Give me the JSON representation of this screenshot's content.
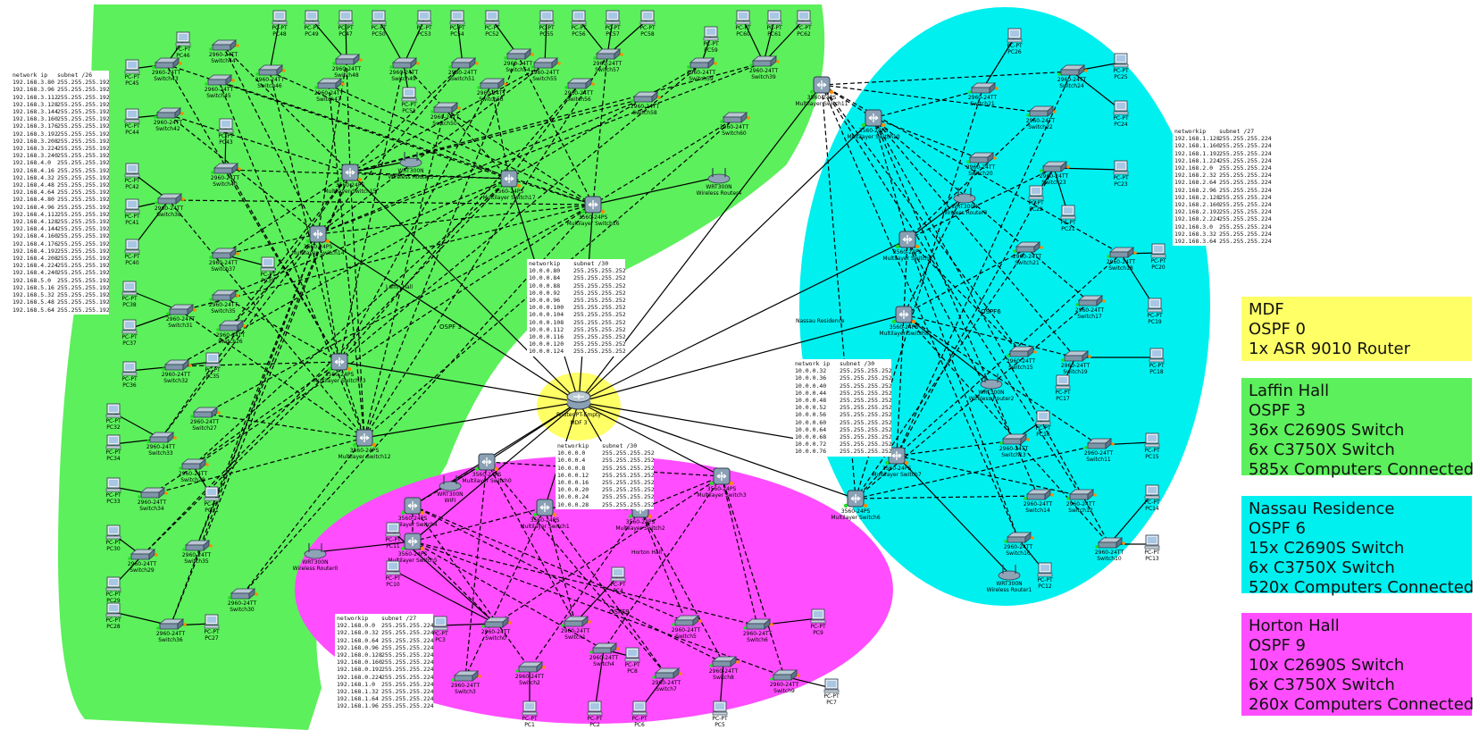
{
  "colors": {
    "laffin": "#5cf05c",
    "nassau": "#00f0f0",
    "horton": "#ff4dff",
    "mdf": "#ffff66",
    "link": "#000000",
    "port_up": "#22dd22",
    "port_wait": "#ff8800"
  },
  "zone_labels": {
    "laffin": "Laffin Hall",
    "nassau": "Nassau Residence",
    "horton": "Horton Hall",
    "ospf_laffin": "OSPF 3",
    "ospf_nassau": "OSPF6",
    "ospf_horton": "OSPF9"
  },
  "core": {
    "model": "Router-PT-Empty",
    "name": "MDF 3"
  },
  "legend": [
    {
      "title": "MDF",
      "lines": [
        "OSPF 0",
        "1x ASR 9010 Router"
      ],
      "color": "#ffff66"
    },
    {
      "title": "Laffin Hall",
      "lines": [
        "OSPF 3",
        "36x C2690S Switch",
        "6x C3750X Switch",
        "585x Computers Connected"
      ],
      "color": "#5cf05c"
    },
    {
      "title": "Nassau Residence",
      "lines": [
        "OSPF 6",
        "15x C2690S Switch",
        "6x C3750X Switch",
        "520x Computers Connected"
      ],
      "color": "#00f0f0"
    },
    {
      "title": "Horton Hall",
      "lines": [
        "OSPF 9",
        "10x C2690S Switch",
        "6x C3750X Switch",
        "260x Computers Connected"
      ],
      "color": "#ff4dff"
    }
  ],
  "tables": {
    "laffin": {
      "h1": "network ip",
      "h2": "subnet /26",
      "rows": [
        [
          "192.168.3.80",
          "255.255.255.192"
        ],
        [
          "192.168.3.96",
          "255.255.255.192"
        ],
        [
          "192.168.3.112",
          "255.255.255.192"
        ],
        [
          "192.168.3.128",
          "255.255.255.192"
        ],
        [
          "192.168.3.144",
          "255.255.255.192"
        ],
        [
          "192.168.3.160",
          "255.255.255.192"
        ],
        [
          "192.168.3.176",
          "255.255.255.192"
        ],
        [
          "192.168.3.192",
          "255.255.255.192"
        ],
        [
          "192.168.3.208",
          "255.255.255.192"
        ],
        [
          "192.168.3.224",
          "255.255.255.192"
        ],
        [
          "192.168.3.240",
          "255.255.255.192"
        ],
        [
          "192.168.4.0",
          "255.255.255.192"
        ],
        [
          "192.168.4.16",
          "255.255.255.192"
        ],
        [
          "192.168.4.32",
          "255.255.255.192"
        ],
        [
          "192.168.4.48",
          "255.255.255.192"
        ],
        [
          "192.168.4.64",
          "255.255.255.192"
        ],
        [
          "192.168.4.80",
          "255.255.255.192"
        ],
        [
          "192.168.4.96",
          "255.255.255.192"
        ],
        [
          "192.168.4.112",
          "255.255.255.192"
        ],
        [
          "192.168.4.128",
          "255.255.255.192"
        ],
        [
          "192.168.4.144",
          "255.255.255.192"
        ],
        [
          "192.168.4.160",
          "255.255.255.192"
        ],
        [
          "192.168.4.176",
          "255.255.255.192"
        ],
        [
          "192.168.4.192",
          "255.255.255.192"
        ],
        [
          "192.168.4.208",
          "255.255.255.192"
        ],
        [
          "192.168.4.224",
          "255.255.255.192"
        ],
        [
          "192.168.4.240",
          "255.255.255.192"
        ],
        [
          "192.168.5.0",
          "255.255.255.192"
        ],
        [
          "192.168.5.16",
          "255.255.255.192"
        ],
        [
          "192.168.5.32",
          "255.255.255.192"
        ],
        [
          "192.168.5.48",
          "255.255.255.192"
        ],
        [
          "192.168.5.64",
          "255.255.255.192"
        ]
      ]
    },
    "nassau": {
      "h1": "networkip",
      "h2": "subnet /27",
      "rows": [
        [
          "192.168.1.128",
          "255.255.255.224"
        ],
        [
          "192.168.1.160",
          "255.255.255.224"
        ],
        [
          "192.168.1.192",
          "255.255.255.224"
        ],
        [
          "192.168.1.224",
          "255.255.255.224"
        ],
        [
          "192.168.2.0",
          "255.255.255.224"
        ],
        [
          "192.168.2.32",
          "255.255.255.224"
        ],
        [
          "192.168.2.64",
          "255.255.255.224"
        ],
        [
          "192.168.2.96",
          "255.255.255.224"
        ],
        [
          "192.168.2.128",
          "255.255.255.224"
        ],
        [
          "192.168.2.160",
          "255.255.255.224"
        ],
        [
          "192.168.2.192",
          "255.255.255.224"
        ],
        [
          "192.168.2.224",
          "255.255.255.224"
        ],
        [
          "192.168.3.0",
          "255.255.255.224"
        ],
        [
          "192.168.3.32",
          "255.255.255.224"
        ],
        [
          "192.168.3.64",
          "255.255.255.224"
        ]
      ]
    },
    "horton": {
      "h1": "networkip",
      "h2": "subnet /27",
      "rows": [
        [
          "192.168.0.0",
          "255.255.255.224"
        ],
        [
          "192.168.0.32",
          "255.255.255.224"
        ],
        [
          "192.168.0.64",
          "255.255.255.224"
        ],
        [
          "192.168.0.96",
          "255.255.255.224"
        ],
        [
          "192.168.0.128",
          "255.255.255.224"
        ],
        [
          "192.168.0.160",
          "255.255.255.224"
        ],
        [
          "192.168.0.192",
          "255.255.255.224"
        ],
        [
          "192.168.0.224",
          "255.255.255.224"
        ],
        [
          "192.168.1.0",
          "255.255.255.224"
        ],
        [
          "192.168.1.32",
          "255.255.255.224"
        ],
        [
          "192.168.1.64",
          "255.255.255.224"
        ],
        [
          "192.168.1.96",
          "255.255.255.224"
        ]
      ]
    },
    "core_laffin": {
      "h1": "networkip",
      "h2": "subnet /30",
      "rows": [
        [
          "10.0.0.80",
          "255.255.255.252"
        ],
        [
          "10.0.0.84",
          "255.255.255.252"
        ],
        [
          "10.0.0.88",
          "255.255.255.252"
        ],
        [
          "10.0.0.92",
          "255.255.255.252"
        ],
        [
          "10.0.0.96",
          "255.255.255.252"
        ],
        [
          "10.0.0.100",
          "255.255.255.252"
        ],
        [
          "10.0.0.104",
          "255.255.255.252"
        ],
        [
          "10.0.0.108",
          "255.255.255.252"
        ],
        [
          "10.0.0.112",
          "255.255.255.252"
        ],
        [
          "10.0.0.116",
          "255.255.255.252"
        ],
        [
          "10.0.0.120",
          "255.255.255.252"
        ],
        [
          "10.0.0.124",
          "255.255.255.252"
        ]
      ]
    },
    "core_nassau": {
      "h1": "network ip",
      "h2": "subnet /30",
      "rows": [
        [
          "10.0.0.32",
          "255.255.255.252"
        ],
        [
          "10.0.0.36",
          "255.255.255.252"
        ],
        [
          "10.0.0.40",
          "255.255.255.252"
        ],
        [
          "10.0.0.44",
          "255.255.255.252"
        ],
        [
          "10.0.0.48",
          "255.255.255.252"
        ],
        [
          "10.0.0.52",
          "255.255.255.252"
        ],
        [
          "10.0.0.56",
          "255.255.255.252"
        ],
        [
          "10.0.0.60",
          "255.255.255.252"
        ],
        [
          "10.0.0.64",
          "255.255.255.252"
        ],
        [
          "10.0.0.68",
          "255.255.255.252"
        ],
        [
          "10.0.0.72",
          "255.255.255.252"
        ],
        [
          "10.0.0.76",
          "255.255.255.252"
        ]
      ]
    },
    "core_horton": {
      "h1": "networkip",
      "h2": "subnet /30",
      "rows": [
        [
          "10.0.0.0",
          "255.255.255.252"
        ],
        [
          "10.0.0.4",
          "255.255.255.252"
        ],
        [
          "10.0.0.8",
          "255.255.255.252"
        ],
        [
          "10.0.0.12",
          "255.255.255.252"
        ],
        [
          "10.0.0.16",
          "255.255.255.252"
        ],
        [
          "10.0.0.20",
          "255.255.255.252"
        ],
        [
          "10.0.0.24",
          "255.255.255.252"
        ],
        [
          "10.0.0.28",
          "255.255.255.252"
        ]
      ]
    }
  },
  "multilayer": [
    {
      "label": "Multilayer Switch15",
      "model": "3560-24PS"
    },
    {
      "label": "Multilayer Switch17",
      "model": "3560-24PS"
    },
    {
      "label": "Multilayer Switch16",
      "model": "3560-24PS"
    },
    {
      "label": "Multilayer Switch14",
      "model": "3560-24PS"
    },
    {
      "label": "Multilayer Switch13",
      "model": "3560-24PS"
    },
    {
      "label": "Multilayer Switch12",
      "model": "3560-24PS"
    },
    {
      "label": "Multilayer Switch11",
      "model": "3560-24PS"
    },
    {
      "label": "Multilayer Switch10",
      "model": "3560-24PS"
    },
    {
      "label": "Multilayer Switch9",
      "model": "3560-24PS"
    },
    {
      "label": "Multilayer Switch8",
      "model": "3560-24PS"
    },
    {
      "label": "Multilayer Switch7",
      "model": "3560-24PS"
    },
    {
      "label": "Multilayer Switch6",
      "model": "3560-24PS"
    },
    {
      "label": "Multilayer Switch0",
      "model": "3560-24PS"
    },
    {
      "label": "Multilayer Switch4",
      "model": "3560-24PS"
    },
    {
      "label": "Multilayer Switch5",
      "model": "3560-24PS"
    },
    {
      "label": "Multilayer Switch1",
      "model": "3560-24PS"
    },
    {
      "label": "Multilayer Switch2",
      "model": "3560-24PS"
    },
    {
      "label": "Multilayer Switch3",
      "model": "3560-24PS"
    }
  ],
  "switches": [
    {
      "label": "Switch44",
      "model": "2960-24TT"
    },
    {
      "label": "Switch43",
      "model": "2960-24TT"
    },
    {
      "label": "Switch45",
      "model": "2960-24TT"
    },
    {
      "label": "Switch42",
      "model": "2960-24TT"
    },
    {
      "label": "Switch46",
      "model": "2960-24TT"
    },
    {
      "label": "Switch47",
      "model": "2960-24TT"
    },
    {
      "label": "Switch48",
      "model": "2960-24TT"
    },
    {
      "label": "Switch49",
      "model": "2960-24TT"
    },
    {
      "label": "Switch50",
      "model": "2960-24TT"
    },
    {
      "label": "Switch51",
      "model": "2960-24TT"
    },
    {
      "label": "Switch53",
      "model": "2960-24TT"
    },
    {
      "label": "Switch54",
      "model": "2960-24TT"
    },
    {
      "label": "Switch55",
      "model": "2960-24TT"
    },
    {
      "label": "Switch56",
      "model": "2960-24TT"
    },
    {
      "label": "Switch57",
      "model": "2960-24TT"
    },
    {
      "label": "Switch58",
      "model": "2960-24TT"
    },
    {
      "label": "Switch59",
      "model": "2960-24TT"
    },
    {
      "label": "Switch60",
      "model": "2960-24TT"
    },
    {
      "label": "Switch39",
      "model": "2960-24TT"
    },
    {
      "label": "Switch40",
      "model": "2960-24TT"
    },
    {
      "label": "Switch38",
      "model": "2960-24TT"
    },
    {
      "label": "Switch37",
      "model": "2960-24TT"
    },
    {
      "label": "Switch35",
      "model": "2960-24TT"
    },
    {
      "label": "Switch31",
      "model": "2960-24TT"
    },
    {
      "label": "Switch26",
      "model": "2960-24TT"
    },
    {
      "label": "Switch32",
      "model": "2960-24TT"
    },
    {
      "label": "Switch27",
      "model": "2960-24TT"
    },
    {
      "label": "Switch33",
      "model": "2960-24TT"
    },
    {
      "label": "Switch28",
      "model": "2960-24TT"
    },
    {
      "label": "Switch34",
      "model": "2960-24TT"
    },
    {
      "label": "Switch35",
      "model": "2960-24TT"
    },
    {
      "label": "Switch29",
      "model": "2960-24TT"
    },
    {
      "label": "Switch30",
      "model": "2960-24TT"
    },
    {
      "label": "Switch36",
      "model": "2960-24TT"
    },
    {
      "label": "Switch24",
      "model": "2960-24TT"
    },
    {
      "label": "Switch21",
      "model": "2960-24TT"
    },
    {
      "label": "Switch22",
      "model": "2960-24TT"
    },
    {
      "label": "Switch20",
      "model": "2960-24TT"
    },
    {
      "label": "Switch23",
      "model": "2960-24TT"
    },
    {
      "label": "Switch21",
      "model": "2960-24TT"
    },
    {
      "label": "Switch18",
      "model": "2960-24TT"
    },
    {
      "label": "Switch17",
      "model": "2960-24TT"
    },
    {
      "label": "Switch15",
      "model": "2960-24TT"
    },
    {
      "label": "Switch19",
      "model": "2960-24TT"
    },
    {
      "label": "Switch13",
      "model": "2960-24TT"
    },
    {
      "label": "Switch11",
      "model": "2960-24TT"
    },
    {
      "label": "Switch12",
      "model": "2960-24TT"
    },
    {
      "label": "Switch14",
      "model": "2960-24TT"
    },
    {
      "label": "Switch16",
      "model": "2960-24TT"
    },
    {
      "label": "Switch10",
      "model": "2960-24TT"
    },
    {
      "label": "Switch0",
      "model": "2960-24TT"
    },
    {
      "label": "Switch1",
      "model": "2960-24TT"
    },
    {
      "label": "Switch5",
      "model": "2960-24TT"
    },
    {
      "label": "Switch6",
      "model": "2960-24TT"
    },
    {
      "label": "Switch3",
      "model": "2960-24TT"
    },
    {
      "label": "Switch2",
      "model": "2960-24TT"
    },
    {
      "label": "Switch4",
      "model": "2960-24TT"
    },
    {
      "label": "Switch7",
      "model": "2960-24TT"
    },
    {
      "label": "Switch8",
      "model": "2960-24TT"
    },
    {
      "label": "Switch9",
      "model": "2960-24TT"
    }
  ],
  "pcs": [
    "PC48",
    "PC49",
    "PC47",
    "PC50",
    "PC53",
    "PC54",
    "PC52",
    "PC55",
    "PC56",
    "PC57",
    "PC58",
    "PC59",
    "PC60",
    "PC61",
    "PC62",
    "PC46",
    "PC45",
    "PC44",
    "PC43",
    "PC42",
    "PC41",
    "PC40",
    "PC39",
    "PC38",
    "PC37",
    "PC36",
    "PC35",
    "PC32",
    "PC34",
    "PC33",
    "PC31",
    "PC30",
    "PC29",
    "PC28",
    "PC27",
    "PC51",
    "PC26",
    "PC25",
    "PC24",
    "PC23",
    "PC22",
    "PC21",
    "PC20",
    "PC19",
    "PC18",
    "PC17",
    "PC16",
    "PC15",
    "PC14",
    "PC13",
    "PC12",
    "PC11",
    "PC10",
    "PC4",
    "PC3",
    "PC8",
    "PC9",
    "PC7",
    "PC1",
    "PC2",
    "PC6",
    "PC5"
  ],
  "routers": [
    "Wireless Router5",
    "Wireless Router4",
    "Wireless Router0",
    "Wireless Router3",
    "Wireless Router2",
    "Wireless Router1",
    "WIFI"
  ],
  "router_model": "WRT300N",
  "pc_model": "PC-PT"
}
